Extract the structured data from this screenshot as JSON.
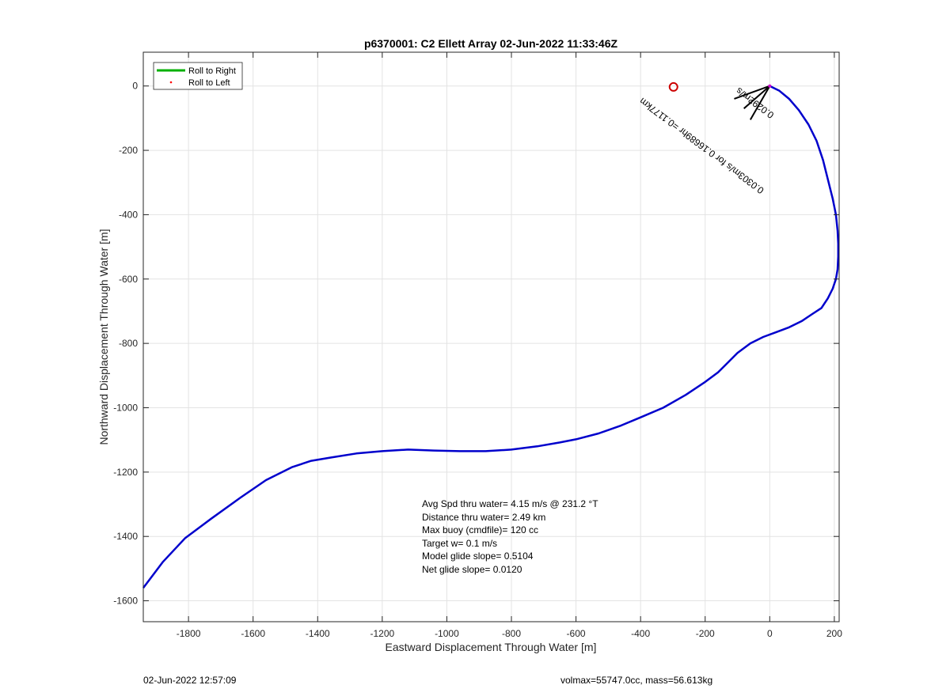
{
  "chart_data": {
    "type": "line",
    "title": "p6370001: C2 Ellett Array 02-Jun-2022 11:33:46Z",
    "xlabel": "Eastward Displacement Through Water [m]",
    "ylabel": "Northward Displacement Through Water [m]",
    "xlim": [
      -1940,
      215
    ],
    "ylim": [
      -1665,
      105
    ],
    "xticks": [
      -1800,
      -1600,
      -1400,
      -1200,
      -1000,
      -800,
      -600,
      -400,
      -200,
      0,
      200
    ],
    "yticks": [
      0,
      -200,
      -400,
      -600,
      -800,
      -1000,
      -1200,
      -1400,
      -1600
    ],
    "grid": true,
    "legend": {
      "position": "top-left",
      "entries": [
        {
          "label": "Roll to Right",
          "color": "#00b000",
          "style": "line"
        },
        {
          "label": "Roll to Left",
          "color": "#ff0000",
          "style": "dot"
        }
      ]
    },
    "series": [
      {
        "color": "#0000cc",
        "x": [
          0,
          30,
          60,
          90,
          120,
          145,
          165,
          180,
          195,
          205,
          210,
          212,
          212,
          210,
          205,
          195,
          180,
          160,
          130,
          100,
          60,
          20,
          -20,
          -60,
          -100,
          -130,
          -160,
          -200,
          -260,
          -330,
          -400,
          -460,
          -530,
          -600,
          -650,
          -720,
          -800,
          -880,
          -960,
          -1040,
          -1120,
          -1200,
          -1280,
          -1360,
          -1420,
          -1480,
          -1560,
          -1640,
          -1730,
          -1810,
          -1880,
          -1940
        ],
        "y": [
          0,
          -15,
          -40,
          -75,
          -120,
          -170,
          -230,
          -290,
          -350,
          -400,
          -450,
          -490,
          -530,
          -570,
          -600,
          -630,
          -660,
          -690,
          -710,
          -730,
          -750,
          -765,
          -780,
          -800,
          -830,
          -860,
          -890,
          -920,
          -960,
          -1000,
          -1030,
          -1055,
          -1080,
          -1098,
          -1108,
          -1120,
          -1130,
          -1135,
          -1135,
          -1133,
          -1130,
          -1135,
          -1142,
          -1155,
          -1165,
          -1185,
          -1225,
          -1280,
          -1345,
          -1405,
          -1480,
          -1560
        ]
      }
    ],
    "markers": [
      {
        "label": "start-circle",
        "x": -298,
        "y": -3,
        "color": "#cc0000"
      }
    ],
    "current_arrows": [
      {
        "dx": -110,
        "dy": -40,
        "color": "#000000"
      },
      {
        "dx": -60,
        "dy": -105,
        "color": "#000000"
      },
      {
        "dx": -80,
        "dy": -70,
        "color": "#000000"
      }
    ],
    "rotated_annotation": {
      "text": "0.0303m/s for 0.16689hr =0.1177km",
      "x": -205,
      "y": -178,
      "angle_deg": 217,
      "overlap_text": "0.0292m/s"
    },
    "stats": [
      "Avg Spd thru water=  4.15 m/s @ 231.2 °T",
      "Distance thru water=  2.49 km",
      "Max buoy (cmdfile)= 120 cc",
      "Target w= 0.1 m/s",
      "Model glide slope= 0.5104",
      "Net glide slope= 0.0120"
    ]
  },
  "footer": {
    "left": "02-Jun-2022 12:57:09",
    "right": "volmax=55747.0cc, mass=56.613kg"
  }
}
